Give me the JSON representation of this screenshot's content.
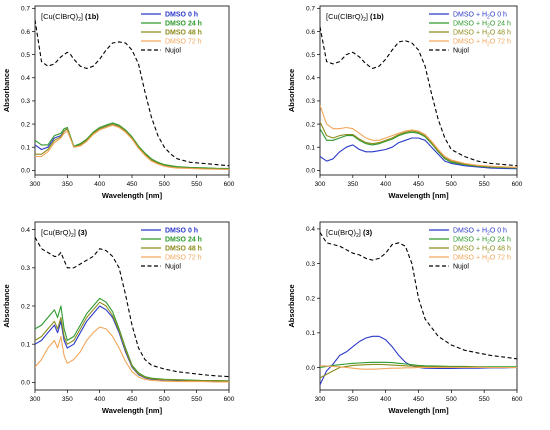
{
  "colors": {
    "blue": "#2b39c9",
    "green": "#2e9a2e",
    "olive": "#8c8c1e",
    "orange": "#f2a65a",
    "black": "#000000"
  },
  "chart_data": [
    {
      "type": "line",
      "title_main": "[Cu(ClBrQ)",
      "title_sub": "2",
      "title_close": "] ",
      "title_bold": "(1b)",
      "xlabel": "Wavelength [nm]",
      "ylabel": "Absorbance",
      "xlim": [
        300,
        600
      ],
      "ylim": [
        -0.02,
        0.71
      ],
      "xticks": [
        300,
        350,
        400,
        450,
        500,
        550,
        600
      ],
      "yticks": [
        0.0,
        0.1,
        0.2,
        0.3,
        0.4,
        0.5,
        0.6,
        0.7
      ],
      "ytick_labels": [
        "0.0",
        "0.1",
        "0.2",
        "0.3",
        "0.4",
        "0.5",
        "0.6",
        "0.7"
      ],
      "legend_position": "top-right",
      "x": [
        300,
        310,
        320,
        330,
        340,
        345,
        350,
        355,
        360,
        370,
        380,
        390,
        400,
        410,
        420,
        430,
        440,
        450,
        460,
        470,
        480,
        490,
        500,
        510,
        520,
        540,
        560,
        580,
        600
      ],
      "series": [
        {
          "name": "DMSO 0 h",
          "color_key": "blue",
          "dashed": false,
          "bold": true,
          "values": [
            0.11,
            0.09,
            0.1,
            0.14,
            0.15,
            0.17,
            0.18,
            0.14,
            0.1,
            0.11,
            0.13,
            0.16,
            0.18,
            0.19,
            0.2,
            0.19,
            0.17,
            0.14,
            0.1,
            0.07,
            0.045,
            0.03,
            0.02,
            0.015,
            0.012,
            0.01,
            0.008,
            0.006,
            0.005
          ]
        },
        {
          "name": "DMSO 24 h",
          "color_key": "green",
          "dashed": false,
          "bold": true,
          "values": [
            0.13,
            0.11,
            0.11,
            0.15,
            0.16,
            0.18,
            0.185,
            0.145,
            0.105,
            0.115,
            0.135,
            0.165,
            0.185,
            0.195,
            0.205,
            0.195,
            0.175,
            0.145,
            0.105,
            0.075,
            0.05,
            0.035,
            0.025,
            0.02,
            0.016,
            0.013,
            0.011,
            0.009,
            0.008
          ]
        },
        {
          "name": "DMSO 48 h",
          "color_key": "olive",
          "dashed": false,
          "bold": true,
          "values": [
            0.07,
            0.07,
            0.09,
            0.13,
            0.145,
            0.17,
            0.18,
            0.14,
            0.1,
            0.11,
            0.13,
            0.16,
            0.18,
            0.19,
            0.2,
            0.19,
            0.17,
            0.14,
            0.1,
            0.07,
            0.045,
            0.03,
            0.02,
            0.015,
            0.012,
            0.01,
            0.008,
            0.006,
            0.005
          ]
        },
        {
          "name": "DMSO 72 h",
          "color_key": "orange",
          "dashed": false,
          "bold": false,
          "values": [
            0.06,
            0.06,
            0.08,
            0.12,
            0.14,
            0.16,
            0.17,
            0.135,
            0.1,
            0.105,
            0.125,
            0.155,
            0.175,
            0.185,
            0.195,
            0.185,
            0.165,
            0.135,
            0.095,
            0.065,
            0.04,
            0.027,
            0.018,
            0.013,
            0.01,
            0.008,
            0.006,
            0.005,
            0.004
          ]
        },
        {
          "name": "Nujol",
          "color_key": "black",
          "dashed": true,
          "bold": false,
          "values": [
            0.65,
            0.47,
            0.45,
            0.46,
            0.49,
            0.5,
            0.51,
            0.5,
            0.48,
            0.45,
            0.44,
            0.45,
            0.48,
            0.52,
            0.55,
            0.555,
            0.55,
            0.52,
            0.46,
            0.34,
            0.23,
            0.15,
            0.1,
            0.07,
            0.05,
            0.035,
            0.03,
            0.025,
            0.02
          ]
        }
      ]
    },
    {
      "type": "line",
      "title_main": "[Cu(ClBrQ)",
      "title_sub": "2",
      "title_close": "] ",
      "title_bold": "(1b)",
      "xlabel": "Wavelength [nm]",
      "ylabel": "Absorbance",
      "xlim": [
        300,
        600
      ],
      "ylim": [
        -0.02,
        0.71
      ],
      "xticks": [
        300,
        350,
        400,
        450,
        500,
        550,
        600
      ],
      "yticks": [
        0.0,
        0.1,
        0.2,
        0.3,
        0.4,
        0.5,
        0.6,
        0.7
      ],
      "ytick_labels": [
        "0.0",
        "0.1",
        "0.2",
        "0.3",
        "0.4",
        "0.5",
        "0.6",
        "0.7"
      ],
      "legend_position": "top-right",
      "x": [
        300,
        310,
        320,
        330,
        340,
        350,
        360,
        370,
        380,
        390,
        400,
        410,
        420,
        430,
        440,
        450,
        460,
        470,
        480,
        490,
        500,
        520,
        540,
        560,
        580,
        600
      ],
      "series": [
        {
          "name": "DMSO + H",
          "name_sub": "2",
          "name_tail": "O 0 h",
          "color_key": "blue",
          "dashed": false,
          "bold": false,
          "values": [
            0.06,
            0.04,
            0.05,
            0.08,
            0.1,
            0.11,
            0.09,
            0.08,
            0.08,
            0.085,
            0.09,
            0.1,
            0.12,
            0.13,
            0.14,
            0.14,
            0.13,
            0.1,
            0.07,
            0.04,
            0.03,
            0.02,
            0.015,
            0.01,
            0.008,
            0.007
          ]
        },
        {
          "name": "DMSO + H",
          "name_sub": "2",
          "name_tail": "O 24 h",
          "color_key": "green",
          "dashed": false,
          "bold": false,
          "values": [
            0.18,
            0.13,
            0.13,
            0.14,
            0.15,
            0.15,
            0.13,
            0.115,
            0.11,
            0.115,
            0.125,
            0.135,
            0.15,
            0.16,
            0.165,
            0.16,
            0.145,
            0.115,
            0.08,
            0.05,
            0.035,
            0.025,
            0.018,
            0.014,
            0.012,
            0.01
          ]
        },
        {
          "name": "DMSO + H",
          "name_sub": "2",
          "name_tail": "O 48 h",
          "color_key": "olive",
          "dashed": false,
          "bold": false,
          "values": [
            0.21,
            0.15,
            0.14,
            0.15,
            0.155,
            0.155,
            0.135,
            0.12,
            0.115,
            0.12,
            0.13,
            0.14,
            0.155,
            0.165,
            0.17,
            0.165,
            0.15,
            0.12,
            0.085,
            0.055,
            0.04,
            0.028,
            0.02,
            0.016,
            0.014,
            0.012
          ]
        },
        {
          "name": "DMSO + H",
          "name_sub": "2",
          "name_tail": "O 72 h",
          "color_key": "orange",
          "dashed": false,
          "bold": false,
          "values": [
            0.28,
            0.2,
            0.18,
            0.18,
            0.185,
            0.18,
            0.16,
            0.14,
            0.13,
            0.13,
            0.14,
            0.15,
            0.16,
            0.17,
            0.175,
            0.17,
            0.155,
            0.125,
            0.09,
            0.06,
            0.045,
            0.03,
            0.022,
            0.018,
            0.015,
            0.013
          ]
        },
        {
          "name": "Nujol",
          "color_key": "black",
          "dashed": true,
          "bold": false,
          "values": [
            0.62,
            0.47,
            0.46,
            0.47,
            0.5,
            0.51,
            0.49,
            0.46,
            0.44,
            0.45,
            0.48,
            0.52,
            0.555,
            0.56,
            0.55,
            0.52,
            0.45,
            0.33,
            0.22,
            0.14,
            0.09,
            0.06,
            0.04,
            0.03,
            0.025,
            0.02
          ]
        }
      ]
    },
    {
      "type": "line",
      "title_main": "[Cu(BrQ)",
      "title_sub": "2",
      "title_close": "] ",
      "title_bold": "(3)",
      "xlabel": "Wavelength [nm]",
      "ylabel": "Absorbance",
      "xlim": [
        300,
        600
      ],
      "ylim": [
        -0.02,
        0.42
      ],
      "xticks": [
        300,
        350,
        400,
        450,
        500,
        550,
        600
      ],
      "yticks": [
        0.0,
        0.1,
        0.2,
        0.3,
        0.4
      ],
      "ytick_labels": [
        "0.0",
        "0.1",
        "0.2",
        "0.3",
        "0.4"
      ],
      "legend_position": "top-right",
      "x": [
        300,
        310,
        320,
        330,
        335,
        340,
        345,
        350,
        360,
        370,
        380,
        390,
        400,
        410,
        420,
        430,
        440,
        450,
        460,
        470,
        480,
        500,
        520,
        540,
        560,
        580,
        600
      ],
      "series": [
        {
          "name": "DMSO 0 h",
          "color_key": "blue",
          "dashed": false,
          "bold": true,
          "values": [
            0.1,
            0.11,
            0.13,
            0.15,
            0.13,
            0.16,
            0.11,
            0.09,
            0.1,
            0.13,
            0.16,
            0.18,
            0.2,
            0.19,
            0.17,
            0.13,
            0.08,
            0.04,
            0.02,
            0.012,
            0.008,
            0.006,
            0.005,
            0.004,
            0.004,
            0.003,
            0.003
          ]
        },
        {
          "name": "DMSO 24 h",
          "color_key": "green",
          "dashed": false,
          "bold": true,
          "values": [
            0.14,
            0.15,
            0.17,
            0.19,
            0.17,
            0.2,
            0.14,
            0.11,
            0.12,
            0.15,
            0.18,
            0.2,
            0.22,
            0.21,
            0.185,
            0.14,
            0.09,
            0.045,
            0.025,
            0.015,
            0.011,
            0.008,
            0.007,
            0.006,
            0.005,
            0.005,
            0.004
          ]
        },
        {
          "name": "DMSO 48 h",
          "color_key": "olive",
          "dashed": false,
          "bold": true,
          "values": [
            0.11,
            0.12,
            0.14,
            0.16,
            0.14,
            0.17,
            0.12,
            0.1,
            0.11,
            0.14,
            0.17,
            0.19,
            0.21,
            0.2,
            0.175,
            0.135,
            0.085,
            0.042,
            0.022,
            0.013,
            0.009,
            0.007,
            0.006,
            0.005,
            0.004,
            0.004,
            0.003
          ]
        },
        {
          "name": "DMSO 72 h",
          "color_key": "orange",
          "dashed": false,
          "bold": false,
          "values": [
            0.04,
            0.06,
            0.09,
            0.11,
            0.09,
            0.12,
            0.07,
            0.05,
            0.06,
            0.08,
            0.11,
            0.13,
            0.145,
            0.14,
            0.12,
            0.09,
            0.055,
            0.028,
            0.014,
            0.008,
            0.005,
            0.003,
            0.002,
            0.002,
            0.002,
            0.001,
            0.001
          ]
        },
        {
          "name": "Nujol",
          "color_key": "black",
          "dashed": true,
          "bold": false,
          "values": [
            0.38,
            0.35,
            0.34,
            0.33,
            0.33,
            0.34,
            0.32,
            0.3,
            0.3,
            0.31,
            0.32,
            0.33,
            0.35,
            0.345,
            0.33,
            0.3,
            0.23,
            0.15,
            0.09,
            0.06,
            0.045,
            0.035,
            0.028,
            0.024,
            0.02,
            0.017,
            0.015
          ]
        }
      ]
    },
    {
      "type": "line",
      "title_main": "[Cu(BrQ)",
      "title_sub": "2",
      "title_close": "] ",
      "title_bold": "(3)",
      "xlabel": "Wavelength [nm]",
      "ylabel": "Absorbance",
      "xlim": [
        300,
        600
      ],
      "ylim": [
        -0.065,
        0.42
      ],
      "xticks": [
        300,
        350,
        400,
        450,
        500,
        550,
        600
      ],
      "yticks": [
        0.0,
        0.1,
        0.2,
        0.3,
        0.4
      ],
      "ytick_labels": [
        "0.0",
        "0.1",
        "0.2",
        "0.3",
        "0.4"
      ],
      "legend_position": "top-right",
      "x": [
        300,
        310,
        320,
        330,
        340,
        350,
        360,
        370,
        380,
        390,
        400,
        410,
        420,
        430,
        440,
        450,
        460,
        480,
        500,
        520,
        540,
        560,
        580,
        600
      ],
      "series": [
        {
          "name": "DMSO + H",
          "name_sub": "2",
          "name_tail": "O 0 h",
          "color_key": "blue",
          "dashed": false,
          "bold": false,
          "values": [
            -0.05,
            -0.01,
            0.01,
            0.035,
            0.045,
            0.06,
            0.075,
            0.085,
            0.09,
            0.09,
            0.08,
            0.06,
            0.035,
            0.015,
            0.005,
            0.0,
            -0.002,
            -0.003,
            -0.003,
            -0.002,
            -0.002,
            -0.001,
            -0.001,
            0.0
          ]
        },
        {
          "name": "DMSO + H",
          "name_sub": "2",
          "name_tail": "O 24 h",
          "color_key": "green",
          "dashed": false,
          "bold": false,
          "values": [
            0.0,
            0.003,
            0.006,
            0.008,
            0.01,
            0.012,
            0.013,
            0.014,
            0.015,
            0.015,
            0.015,
            0.014,
            0.012,
            0.01,
            0.008,
            0.006,
            0.005,
            0.004,
            0.003,
            0.003,
            0.002,
            0.002,
            0.002,
            0.002
          ]
        },
        {
          "name": "DMSO + H",
          "name_sub": "2",
          "name_tail": "O 48 h",
          "color_key": "olive",
          "dashed": false,
          "bold": false,
          "values": [
            -0.03,
            -0.02,
            -0.01,
            0.0,
            0.003,
            0.006,
            0.007,
            0.008,
            0.009,
            0.009,
            0.008,
            0.007,
            0.006,
            0.005,
            0.004,
            0.003,
            0.002,
            0.002,
            0.001,
            0.001,
            0.001,
            0.0,
            0.0,
            0.0
          ]
        },
        {
          "name": "DMSO + H",
          "name_sub": "2",
          "name_tail": "O 72 h",
          "color_key": "orange",
          "dashed": false,
          "bold": false,
          "values": [
            0.005,
            0.004,
            0.003,
            0.002,
            0.0,
            -0.002,
            -0.004,
            -0.005,
            -0.005,
            -0.004,
            -0.003,
            -0.002,
            -0.002,
            -0.001,
            -0.001,
            0.0,
            0.0,
            0.0,
            0.0,
            0.0,
            0.0,
            0.0,
            0.0,
            0.0
          ]
        },
        {
          "name": "Nujol",
          "color_key": "black",
          "dashed": true,
          "bold": false,
          "values": [
            0.39,
            0.36,
            0.355,
            0.35,
            0.34,
            0.33,
            0.325,
            0.315,
            0.31,
            0.315,
            0.33,
            0.355,
            0.36,
            0.35,
            0.3,
            0.2,
            0.14,
            0.09,
            0.065,
            0.05,
            0.042,
            0.035,
            0.03,
            0.025
          ]
        }
      ]
    }
  ]
}
